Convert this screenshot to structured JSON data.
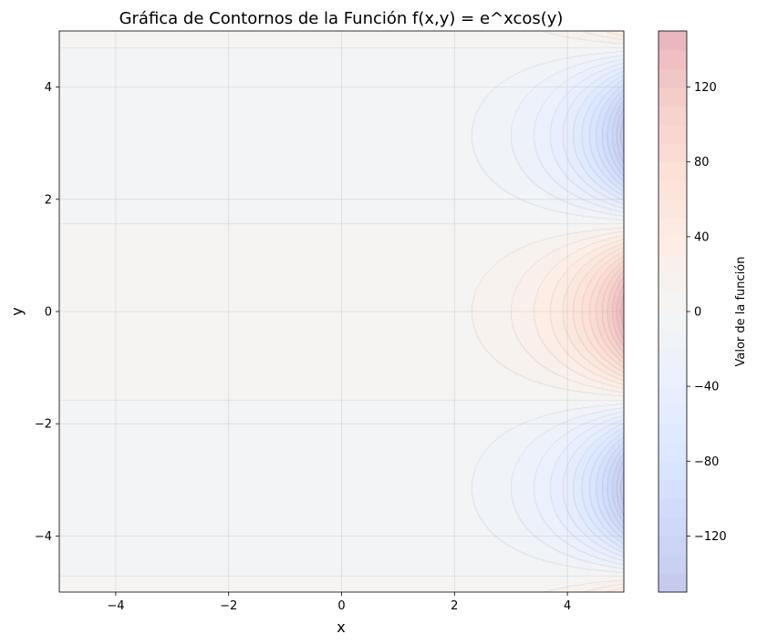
{
  "chart_data": {
    "type": "contour",
    "title": "Gráfica de Contornos de la Función f(x,y) = e^xcos(y)",
    "xlabel": "x",
    "ylabel": "y",
    "function": "f(x,y) = e^x cos(y)",
    "xlim": [
      -5,
      5
    ],
    "ylim": [
      -5,
      5
    ],
    "xticks": [
      -4,
      -2,
      0,
      2,
      4
    ],
    "yticks": [
      -4,
      -2,
      0,
      2,
      4
    ],
    "xtick_labels": [
      "−4",
      "−2",
      "0",
      "2",
      "4"
    ],
    "ytick_labels": [
      "−4",
      "−2",
      "0",
      "2",
      "4"
    ],
    "grid": true,
    "colormap": "coolwarm",
    "alpha": 0.3,
    "colorbar": {
      "label": "Valor de la función",
      "range": [
        -150,
        150
      ],
      "ticks": [
        -120,
        -80,
        -40,
        0,
        40,
        80,
        120
      ],
      "tick_labels": [
        "−120",
        "−80",
        "−40",
        "0",
        "40",
        "80",
        "120"
      ]
    },
    "level_step": 10
  }
}
